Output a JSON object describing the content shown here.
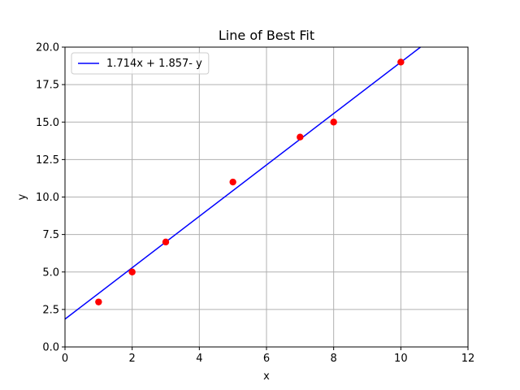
{
  "chart_data": {
    "type": "scatter",
    "title": "Line of Best Fit",
    "xlabel": "x",
    "ylabel": "y",
    "xlim": [
      0,
      12
    ],
    "ylim": [
      0,
      20
    ],
    "xticks": [
      "0",
      "2",
      "4",
      "6",
      "8",
      "10",
      "12"
    ],
    "yticks": [
      "0.0",
      "2.5",
      "5.0",
      "7.5",
      "10.0",
      "12.5",
      "15.0",
      "17.5",
      "20.0"
    ],
    "grid": true,
    "legend_position": "top-left",
    "points": [
      {
        "x": 1,
        "y": 3
      },
      {
        "x": 2,
        "y": 5
      },
      {
        "x": 3,
        "y": 7
      },
      {
        "x": 5,
        "y": 11
      },
      {
        "x": 7,
        "y": 14
      },
      {
        "x": 8,
        "y": 15
      },
      {
        "x": 10,
        "y": 19
      }
    ],
    "fit_line": {
      "name": "1.714x + 1.857- y",
      "slope": 1.714,
      "intercept": 1.857
    },
    "colors": {
      "points": "#ff0000",
      "line": "#0000ff",
      "grid": "#b0b0b0"
    }
  }
}
